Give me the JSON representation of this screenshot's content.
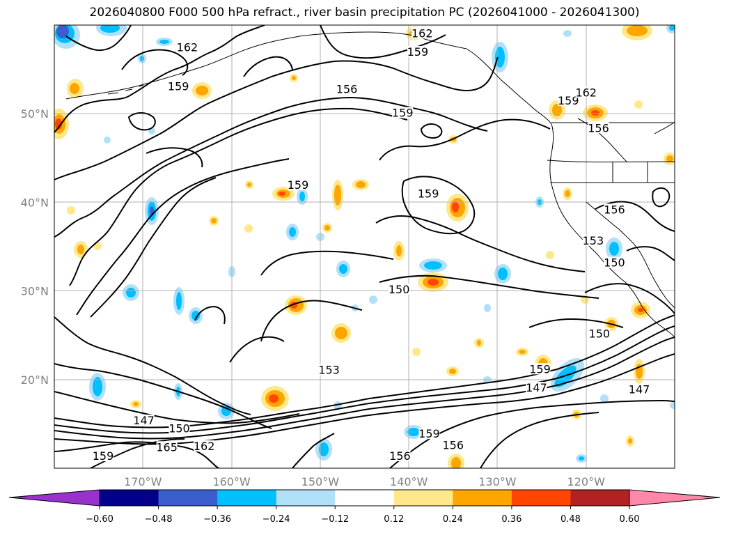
{
  "title": "2026040800 F000 500 hPa refract., river basin precipitation PC (2026041000 - 2026041300)",
  "map": {
    "lon_range": [
      -180,
      -110
    ],
    "lat_range": [
      10,
      60
    ],
    "lon_ticks": [
      {
        "lon": -170,
        "label": "170°W"
      },
      {
        "lon": -160,
        "label": "160°W"
      },
      {
        "lon": -150,
        "label": "150°W"
      },
      {
        "lon": -140,
        "label": "140°W"
      },
      {
        "lon": -130,
        "label": "130°W"
      },
      {
        "lon": -120,
        "label": "120°W"
      }
    ],
    "lat_ticks": [
      {
        "lat": 50,
        "label": "50°N"
      },
      {
        "lat": 40,
        "label": "40°N"
      },
      {
        "lat": 30,
        "label": "30°N"
      },
      {
        "lat": 20,
        "label": "20°N"
      }
    ],
    "grid": true
  },
  "contour_labels": [
    {
      "text": "162",
      "lon": -165,
      "lat": 57.2
    },
    {
      "text": "159",
      "lon": -166,
      "lat": 52.8
    },
    {
      "text": "156",
      "lon": -147,
      "lat": 52.5
    },
    {
      "text": "159",
      "lon": -139,
      "lat": 56.7
    },
    {
      "text": "162",
      "lon": -138.5,
      "lat": 58.8
    },
    {
      "text": "159",
      "lon": -140.7,
      "lat": 49.8
    },
    {
      "text": "159",
      "lon": -122,
      "lat": 51.2
    },
    {
      "text": "162",
      "lon": -120,
      "lat": 52.1
    },
    {
      "text": "156",
      "lon": -118.6,
      "lat": 48.1
    },
    {
      "text": "159",
      "lon": -152.5,
      "lat": 41.7
    },
    {
      "text": "159",
      "lon": -137.8,
      "lat": 40.7
    },
    {
      "text": "156",
      "lon": -116.8,
      "lat": 38.9
    },
    {
      "text": "153",
      "lon": -119.2,
      "lat": 35.4
    },
    {
      "text": "150",
      "lon": -116.8,
      "lat": 32.9
    },
    {
      "text": "150",
      "lon": -141.1,
      "lat": 29.9
    },
    {
      "text": "153",
      "lon": -149,
      "lat": 20.8
    },
    {
      "text": "159",
      "lon": -125.2,
      "lat": 20.9
    },
    {
      "text": "150",
      "lon": -118.5,
      "lat": 24.9
    },
    {
      "text": "147",
      "lon": -125.6,
      "lat": 18.8
    },
    {
      "text": "147",
      "lon": -114,
      "lat": 18.6
    },
    {
      "text": "147",
      "lon": -169.9,
      "lat": 15.1
    },
    {
      "text": "150",
      "lon": -165.9,
      "lat": 14.2
    },
    {
      "text": "165",
      "lon": -167.3,
      "lat": 12.1
    },
    {
      "text": "162",
      "lon": -163.1,
      "lat": 12.2
    },
    {
      "text": "159",
      "lon": -174.5,
      "lat": 11.1
    },
    {
      "text": "159",
      "lon": -137.7,
      "lat": 13.6
    },
    {
      "text": "156",
      "lon": -141,
      "lat": 11.1
    },
    {
      "text": "156",
      "lon": -135,
      "lat": 12.3
    }
  ],
  "colorbar": {
    "ticks": [
      "−0.60",
      "−0.48",
      "−0.36",
      "−0.24",
      "−0.12",
      "0.12",
      "0.24",
      "0.36",
      "0.48",
      "0.60"
    ],
    "extend_min_color": "#9932cc",
    "extend_max_color": "#ff88aa",
    "colors": [
      "#00008b",
      "#3a5fcd",
      "#00bfff",
      "#b0e0fa",
      "#ffffff",
      "#ffe88a",
      "#ffa500",
      "#ff4500",
      "#b22222"
    ]
  },
  "shading_colors": {
    "weak_pos": "#ffe88a",
    "mid_pos": "#ffa500",
    "strong_pos": "#ff4500",
    "weak_neg": "#b0e0fa",
    "mid_neg": "#00bfff",
    "strong_neg": "#3a5fcd"
  }
}
